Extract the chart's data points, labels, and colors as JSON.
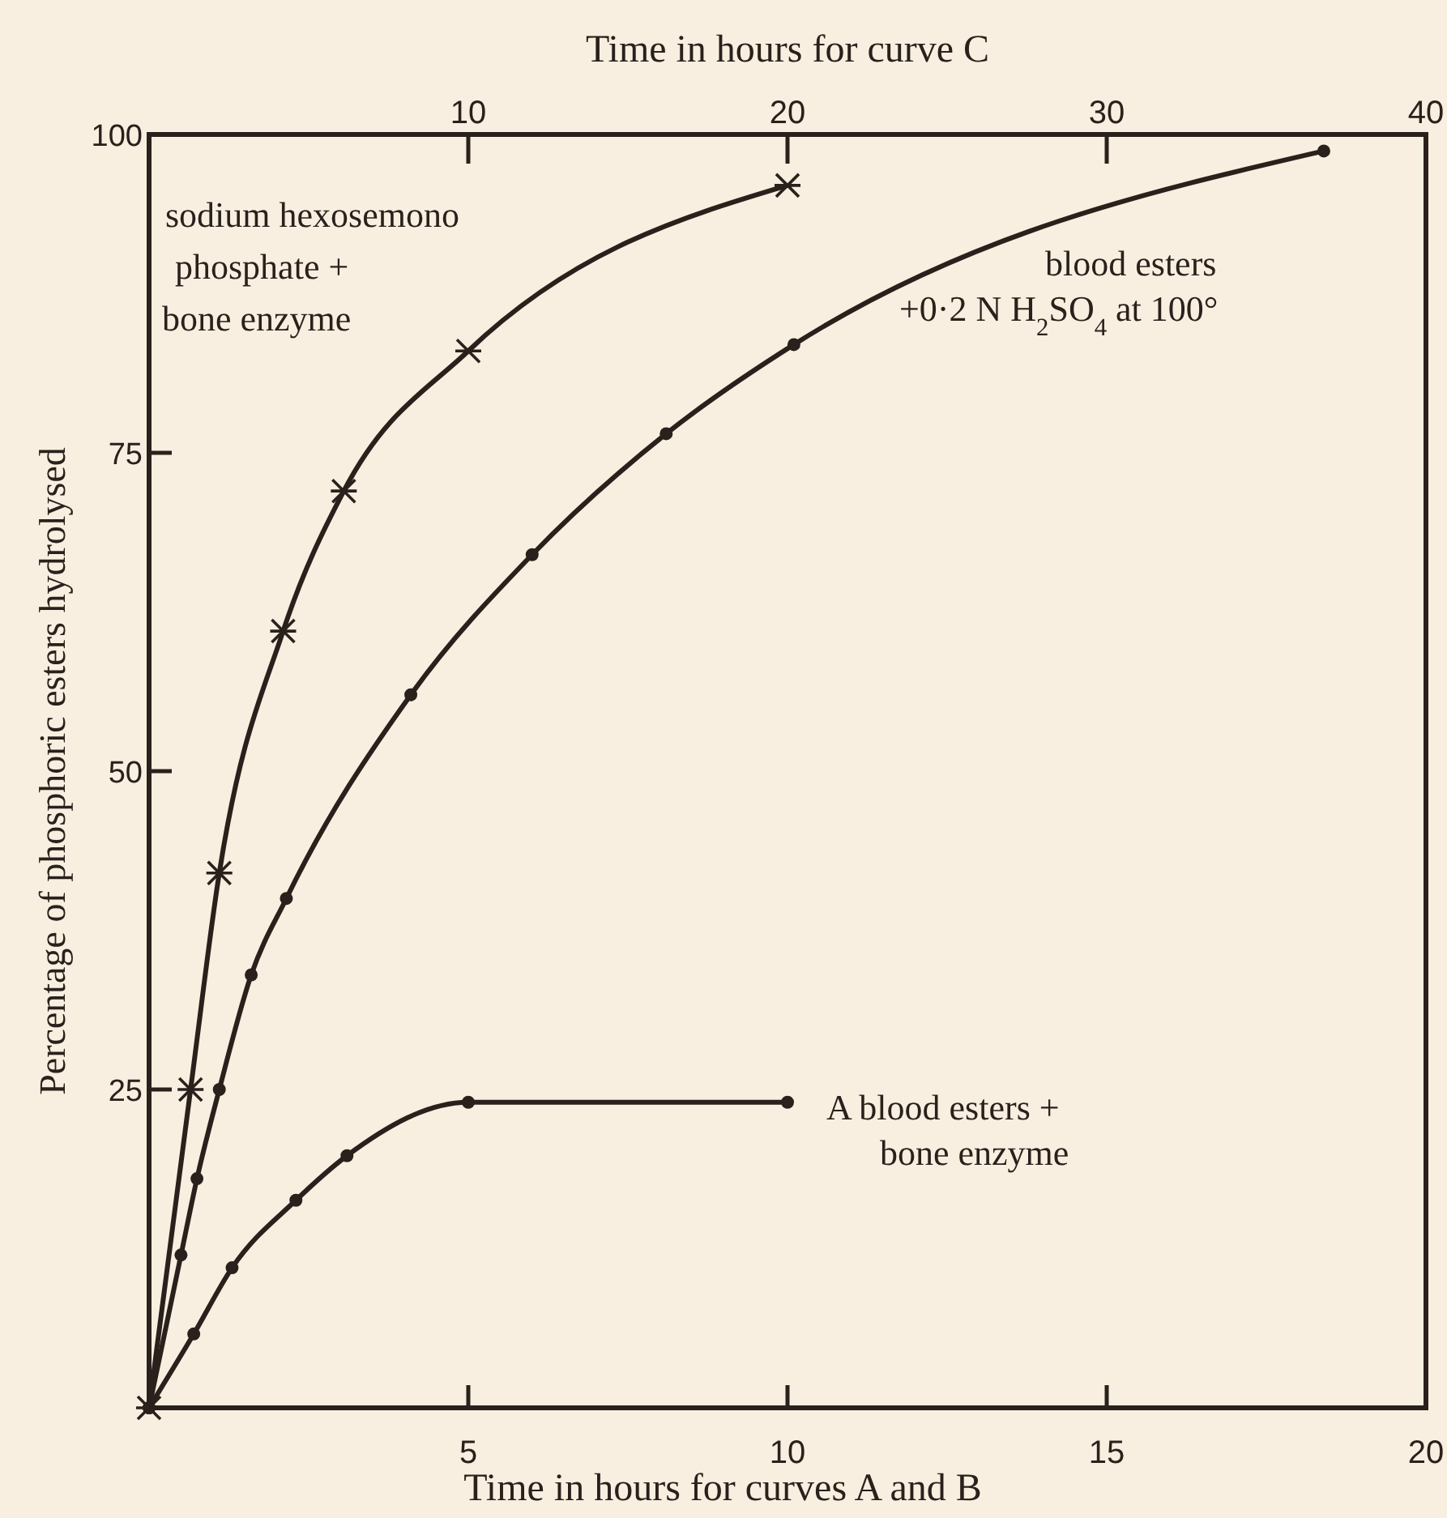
{
  "chart_data": {
    "type": "line",
    "xlabel": "Time in hours for curves A and B",
    "x2label": "Time in hours for curve C",
    "ylabel": "Percentage of phosphoric esters hydrolysed",
    "xlim": [
      0,
      20
    ],
    "xticks": [
      5,
      10,
      15,
      20
    ],
    "x2lim": [
      0,
      40
    ],
    "x2ticks": [
      10,
      20,
      30,
      40
    ],
    "ylim": [
      0,
      100
    ],
    "yticks": [
      25,
      50,
      75,
      100
    ],
    "grid": false,
    "series": [
      {
        "color": "#2a211c",
        "marker": "cross",
        "axis": "x2",
        "x": [
          0,
          1.3,
          2.2,
          4.2,
          6.1,
          10,
          20
        ],
        "values": [
          0,
          25,
          42,
          61,
          72,
          83,
          96
        ]
      },
      {
        "color": "#2a211c",
        "marker": "circle",
        "x": [
          0,
          0.5,
          0.75,
          1.1,
          1.6,
          2.15,
          4.1,
          6,
          8.1,
          10.1,
          18.4
        ],
        "values": [
          0,
          12,
          18,
          25,
          34,
          40,
          56,
          67,
          76.5,
          83.5,
          98.7
        ]
      },
      {
        "color": "#2a211c",
        "marker": "circle",
        "x": [
          0,
          0.7,
          1.3,
          2.3,
          3.1,
          5,
          10
        ],
        "values": [
          0,
          5.8,
          11,
          16.3,
          19.8,
          24,
          24
        ]
      }
    ],
    "annotations": [
      "sodium hexosemono\nphosphate +\nbone enzyme",
      "blood esters\n+0·2 N H$_{2}$SO$_{4}$ at 100°",
      "A blood esters +\nbone enzyme"
    ]
  }
}
